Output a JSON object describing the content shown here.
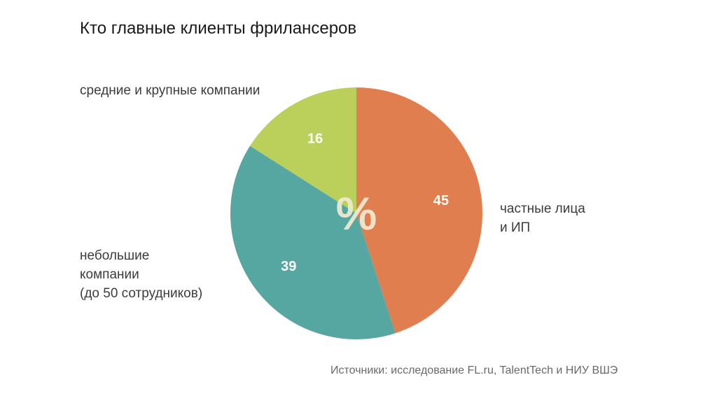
{
  "chart_data": {
    "type": "pie",
    "title": "Кто главные клиенты фрилансеров",
    "center_label": "%",
    "slices": [
      {
        "label": "частные лица и ИП",
        "label_lines": [
          "частные лица",
          "и ИП"
        ],
        "value": 45,
        "value_label": "45",
        "color": "#E07E50"
      },
      {
        "label": "небольшие компании (до 50 сотрудников)",
        "label_lines": [
          "небольшие",
          "компании",
          "(до 50 сотрудников)"
        ],
        "value": 39,
        "value_label": "39",
        "color": "#56A7A1"
      },
      {
        "label": "средние и крупные компании",
        "label_lines": [
          "средние и крупные компании"
        ],
        "value": 16,
        "value_label": "16",
        "color": "#BBCF5B"
      }
    ],
    "source": "Источники: исследование FL.ru, TalentTech и НИУ ВШЭ"
  }
}
